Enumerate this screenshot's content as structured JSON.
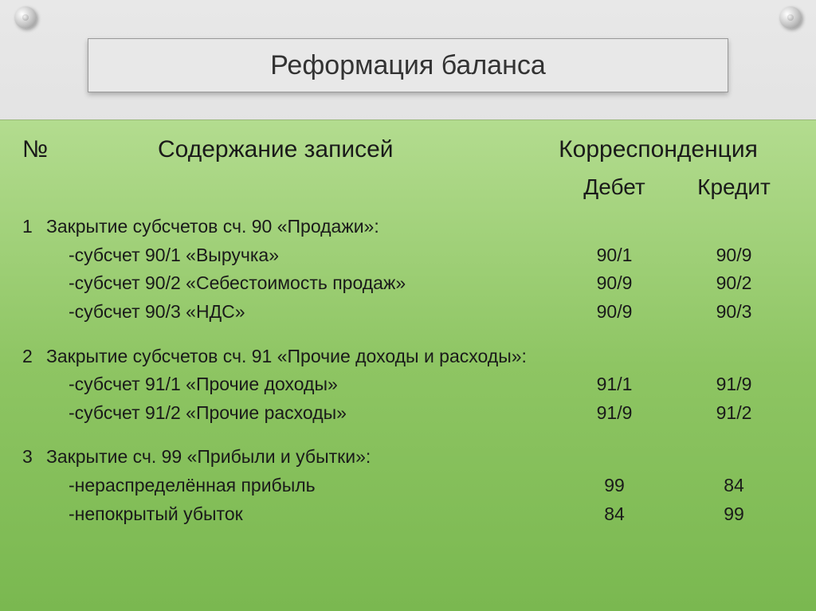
{
  "title": "Реформация баланса",
  "columns": {
    "num": "№",
    "desc": "Содержание записей",
    "corr": "Корреспонденция",
    "debit": "Дебет",
    "credit": "Кредит"
  },
  "sections": [
    {
      "num": "1",
      "heading": "Закрытие субсчетов сч. 90 «Продажи»:",
      "rows": [
        {
          "label": "-субсчет 90/1 «Выручка»",
          "debit": "90/1",
          "credit": "90/9"
        },
        {
          "label": "-субсчет 90/2 «Себестоимость продаж»",
          "debit": "90/9",
          "credit": "90/2"
        },
        {
          "label": "-субсчет 90/3 «НДС»",
          "debit": "90/9",
          "credit": "90/3"
        }
      ]
    },
    {
      "num": "2",
      "heading": "Закрытие субсчетов сч. 91 «Прочие доходы и расходы»:",
      "rows": [
        {
          "label": "-субсчет 91/1 «Прочие доходы»",
          "debit": "91/1",
          "credit": "91/9"
        },
        {
          "label": "-субсчет 91/2 «Прочие расходы»",
          "debit": "91/9",
          "credit": "91/2"
        }
      ]
    },
    {
      "num": "3",
      "heading": "Закрытие сч. 99 «Прибыли и убытки»:",
      "rows": [
        {
          "label": "-нераспределённая прибыль",
          "debit": "99",
          "credit": "84"
        },
        {
          "label": "-непокрытый убыток",
          "debit": "84",
          "credit": "99"
        }
      ]
    }
  ],
  "style": {
    "background_gradient_top": "#b3dc8f",
    "background_gradient_bot": "#7ab850",
    "title_band_bg": "#e8e8e8",
    "title_fontsize": 34,
    "header_fontsize": 30,
    "subheader_fontsize": 28,
    "body_fontsize": 23,
    "text_color": "#1a1a1a"
  }
}
